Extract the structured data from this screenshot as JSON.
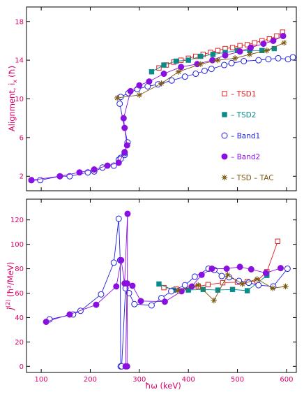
{
  "colors": {
    "axis_text": "#e0006a",
    "frame": "#000000",
    "tsd1": "#e02020",
    "tsd2": "#0a8a8a",
    "band1": "#2020e0",
    "band2": "#8a10e0",
    "tsdtac": "#7a5a10"
  },
  "chart_data": [
    {
      "type": "line",
      "ylabel": "Alignment, iₓ (ħ)",
      "ylabel_text": "Alignment, i",
      "ylabel_sub": "x",
      "ylabel_unit": "(ħ)",
      "xlim": [
        70,
        620
      ],
      "ylim": [
        0.5,
        19.5
      ],
      "xticks": [
        100,
        200,
        300,
        400,
        500,
        600
      ],
      "yticks": [
        2,
        6,
        10,
        14,
        18
      ],
      "yticks_labels": [
        "2",
        "6",
        "10",
        "14",
        "18"
      ],
      "legend_position": "right",
      "legend": [
        {
          "label": "– TSD1",
          "series": "tsd1",
          "marker": "square-open"
        },
        {
          "label": "– TSD2",
          "series": "tsd2",
          "marker": "square-filled"
        },
        {
          "label": "– Band1",
          "series": "band1",
          "marker": "circle-open"
        },
        {
          "label": "– Band2",
          "series": "band2",
          "marker": "circle-filled"
        },
        {
          "label": "– TSD – TAC",
          "series": "tsdtac",
          "marker": "asterisk"
        }
      ],
      "series": [
        {
          "name": "TSD1",
          "key": "tsd1",
          "marker": "square-open",
          "x": [
            340,
            355,
            370,
            385,
            400,
            415,
            430,
            445,
            460,
            475,
            490,
            505,
            520,
            535,
            550,
            565,
            580,
            592
          ],
          "y": [
            13.2,
            13.5,
            13.8,
            14.0,
            14.2,
            14.4,
            14.6,
            14.8,
            15.0,
            15.2,
            15.3,
            15.5,
            15.6,
            15.8,
            16.0,
            16.2,
            16.5,
            16.9
          ]
        },
        {
          "name": "TSD2",
          "key": "tsd2",
          "marker": "square-filled",
          "x": [
            325,
            350,
            375,
            400,
            425,
            450,
            475,
            500,
            525,
            550,
            575
          ],
          "y": [
            12.8,
            13.5,
            13.9,
            14.0,
            14.4,
            14.6,
            14.8,
            15.0,
            15.0,
            15.0,
            15.2
          ]
        },
        {
          "name": "Band1",
          "key": "band1",
          "marker": "circle-open",
          "x": [
            80,
            98,
            138,
            158,
            195,
            208,
            225,
            248,
            258,
            262,
            262,
            270,
            270,
            276,
            260,
            262,
            278,
            296,
            317,
            338,
            366,
            393,
            415,
            433,
            447,
            473,
            488,
            513,
            543,
            563,
            583,
            603,
            613
          ],
          "y": [
            1.6,
            1.6,
            2.0,
            2.0,
            2.4,
            2.5,
            2.9,
            3.1,
            3.7,
            3.9,
            3.8,
            4.2,
            4.4,
            5.5,
            9.5,
            10.2,
            10.6,
            11.0,
            11.3,
            11.5,
            11.9,
            12.3,
            12.6,
            12.9,
            13.1,
            13.5,
            13.7,
            13.9,
            14.0,
            14.1,
            14.2,
            14.1,
            14.3
          ]
        },
        {
          "name": "Band2",
          "key": "band2",
          "marker": "circle-filled",
          "x": [
            80,
            138,
            178,
            208,
            235,
            258,
            270,
            275,
            270,
            268,
            282,
            300,
            320,
            350,
            385,
            418,
            449,
            475,
            505,
            527,
            553,
            573,
            593
          ],
          "y": [
            1.6,
            2.0,
            2.4,
            2.7,
            3.1,
            3.4,
            4.5,
            5.2,
            7.0,
            8.0,
            10.8,
            11.4,
            11.8,
            12.6,
            13.3,
            13.6,
            14.0,
            14.5,
            14.9,
            15.3,
            15.7,
            16.0,
            16.5
          ]
        },
        {
          "name": "TSD – TAC",
          "key": "tsdtac",
          "marker": "asterisk",
          "x": [
            255,
            300,
            345,
            380,
            425,
            460,
            495,
            525,
            560,
            595
          ],
          "y": [
            10.1,
            10.4,
            11.6,
            12.8,
            13.6,
            14.0,
            14.2,
            14.6,
            15.0,
            15.8
          ]
        }
      ]
    },
    {
      "type": "line",
      "xlabel": "ħω  (keV)",
      "ylabel": "ǰ⁽²⁾ (ħ²/MeV)",
      "ylabel_main": "ǰ",
      "ylabel_sup": "(2)",
      "ylabel_unit": " (ħ²/MeV)",
      "xlim": [
        70,
        620
      ],
      "ylim": [
        -5,
        137
      ],
      "xticks": [
        100,
        200,
        300,
        400,
        500,
        600
      ],
      "xticks_labels": [
        "100",
        "200",
        "300",
        "400",
        "500",
        "600"
      ],
      "yticks": [
        0,
        20,
        40,
        60,
        80,
        100,
        120
      ],
      "yticks_labels": [
        "0",
        "20",
        "40",
        "60",
        "80",
        "100",
        "120"
      ],
      "series": [
        {
          "name": "TSD1",
          "key": "tsd1",
          "marker": "square-open",
          "x": [
            350,
            375,
            400,
            420,
            440,
            470,
            500,
            520,
            540,
            560,
            582
          ],
          "y": [
            64.5,
            63.5,
            64.0,
            65.5,
            67.0,
            68.5,
            69.0,
            69.5,
            70.0,
            77.5,
            102.5
          ]
        },
        {
          "name": "TSD2",
          "key": "tsd2",
          "marker": "square-filled",
          "x": [
            340,
            370,
            400,
            430,
            460,
            490,
            520,
            560
          ],
          "y": [
            67.5,
            62.5,
            62.5,
            63.0,
            62.5,
            63.0,
            62.0,
            74.5
          ]
        },
        {
          "name": "Band1",
          "key": "band1",
          "marker": "circle-open",
          "x": [
            117,
            165,
            180,
            222,
            248,
            258,
            261,
            262,
            264,
            272,
            279,
            290,
            325,
            345,
            365,
            393,
            413,
            441,
            453,
            468,
            483,
            503,
            523,
            543,
            573,
            602
          ],
          "y": [
            38.5,
            42.5,
            45.5,
            59.0,
            85.0,
            121.0,
            87.0,
            0.0,
            0.0,
            64.0,
            60.0,
            51.0,
            50.0,
            56.0,
            61.5,
            66.5,
            73.5,
            80.0,
            79.0,
            74.0,
            73.0,
            70.0,
            68.5,
            66.5,
            65.5,
            80.0
          ]
        },
        {
          "name": "Band2",
          "key": "band2",
          "marker": "circle-filled",
          "x": [
            110,
            158,
            212,
            253,
            263,
            270,
            276,
            275,
            272,
            275,
            286,
            303,
            352,
            386,
            407,
            427,
            448,
            478,
            505,
            528,
            558,
            588
          ],
          "y": [
            36.5,
            42.5,
            50.5,
            65.5,
            87.0,
            68.0,
            125.0,
            0.0,
            0.0,
            68.0,
            66.0,
            53.5,
            53.0,
            61.5,
            65.5,
            75.0,
            80.0,
            80.0,
            81.5,
            79.5,
            76.5,
            80.5
          ]
        },
        {
          "name": "TSD – TAC",
          "key": "tsdtac",
          "marker": "asterisk",
          "x": [
            378,
            420,
            452,
            480,
            510,
            540,
            572,
            598
          ],
          "y": [
            62.0,
            66.5,
            54.0,
            75.0,
            67.5,
            71.5,
            64.0,
            65.5
          ]
        }
      ]
    }
  ]
}
